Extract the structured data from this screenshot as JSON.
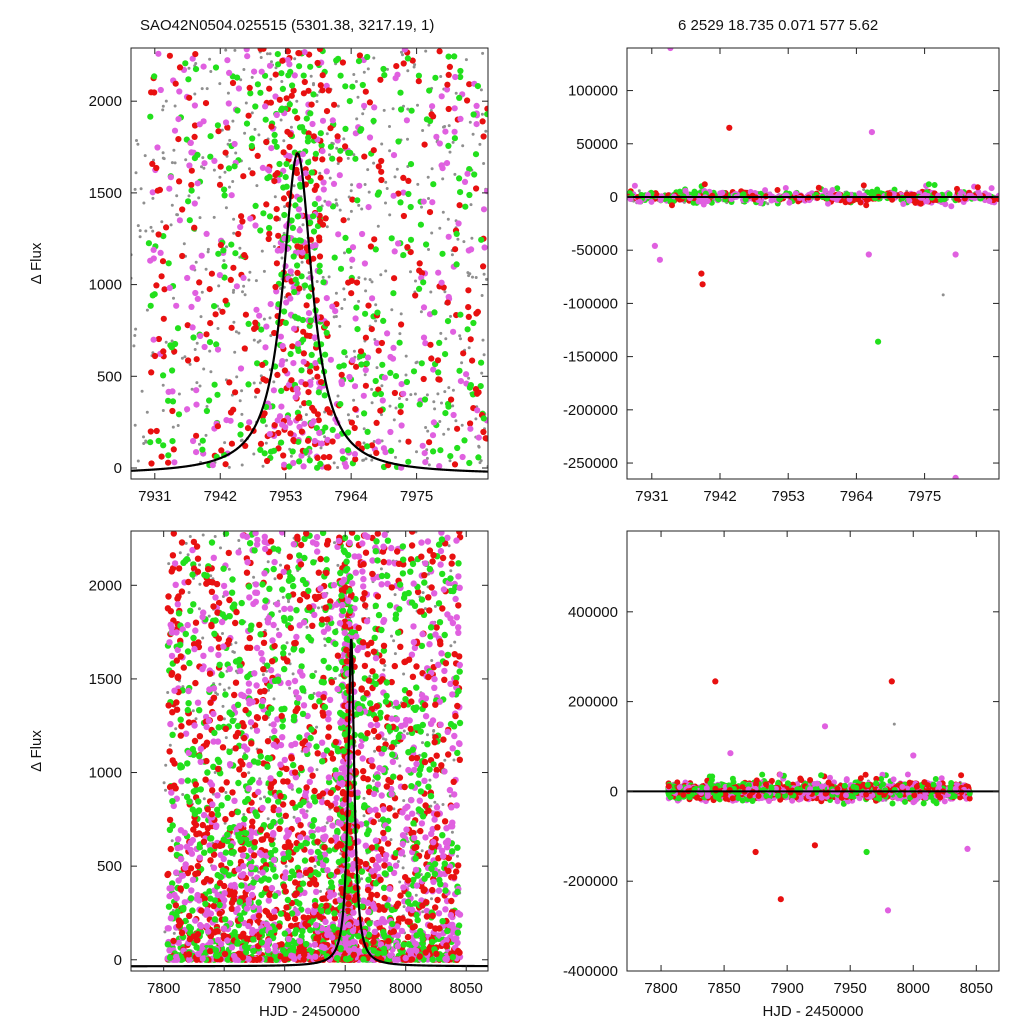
{
  "header": {
    "left": "SAO42N0504.025515 (5301.38, 3217.19,     1)",
    "right": "6    2529    18.735    0.071    577    5.62"
  },
  "chart_data": [
    {
      "type": "scatter",
      "panel": "top-left",
      "xlabel": "",
      "ylabel": "Δ Flux",
      "xlim": [
        7927,
        7987
      ],
      "ylim": [
        -60,
        2290
      ],
      "xticks": [
        7931,
        7942,
        7953,
        7964,
        7975
      ],
      "yticks": [
        0,
        500,
        1000,
        1500,
        2000
      ],
      "model": {
        "shape": "lorentzian",
        "center": 7955,
        "amplitude": 1750,
        "hwhm": 3,
        "color": "#000000"
      },
      "series": [
        {
          "color": "#8f8f8f",
          "kind": "small",
          "description_values": "dense uniform scatter 0-2290"
        },
        {
          "color": "#e81010",
          "kind": "large"
        },
        {
          "color": "#22e01c",
          "kind": "large"
        },
        {
          "color": "#e060e0",
          "kind": "large"
        }
      ]
    },
    {
      "type": "scatter",
      "panel": "top-right",
      "xlabel": "",
      "ylabel": "",
      "xlim": [
        7927,
        7987
      ],
      "ylim": [
        -265000,
        140000
      ],
      "xticks": [
        7931,
        7942,
        7953,
        7964,
        7975
      ],
      "yticks": [
        100000,
        50000,
        0,
        -50000,
        -100000,
        -150000,
        -200000,
        -250000
      ],
      "outliers": [
        {
          "x": 7943.5,
          "y": 65000,
          "color": "#e81010"
        },
        {
          "x": 7966.5,
          "y": 61000,
          "color": "#e060e0"
        },
        {
          "x": 7939,
          "y": -72000,
          "color": "#e81010"
        },
        {
          "x": 7939.2,
          "y": -82000,
          "color": "#e81010"
        },
        {
          "x": 7931.5,
          "y": -46000,
          "color": "#e060e0"
        },
        {
          "x": 7932.3,
          "y": -59000,
          "color": "#e060e0"
        },
        {
          "x": 7966,
          "y": -54000,
          "color": "#e060e0"
        },
        {
          "x": 7980,
          "y": -54000,
          "color": "#e060e0"
        },
        {
          "x": 7967.5,
          "y": -136000,
          "color": "#22e01c"
        },
        {
          "x": 7978,
          "y": -92000,
          "color": "#8f8f8f"
        },
        {
          "x": 7980,
          "y": -264000,
          "color": "#e060e0"
        },
        {
          "x": 7934,
          "y": 140000,
          "color": "#e060e0"
        }
      ]
    },
    {
      "type": "scatter",
      "panel": "bottom-left",
      "xlabel": "HJD - 2450000",
      "ylabel": "Δ Flux",
      "xlim": [
        7773,
        8068
      ],
      "ylim": [
        -60,
        2290
      ],
      "xticks": [
        7800,
        7850,
        7900,
        7950,
        8000,
        8050
      ],
      "yticks": [
        0,
        500,
        1000,
        1500,
        2000
      ],
      "model": {
        "shape": "lorentzian",
        "center": 7955,
        "amplitude": 1750,
        "hwhm": 3,
        "color": "#000000"
      }
    },
    {
      "type": "scatter",
      "panel": "bottom-right",
      "xlabel": "HJD - 2450000",
      "ylabel": "",
      "xlim": [
        7773,
        8068
      ],
      "ylim": [
        -400000,
        580000
      ],
      "xticks": [
        7800,
        7850,
        7900,
        7950,
        8000,
        8050
      ],
      "yticks": [
        400000,
        200000,
        0,
        -200000,
        -400000
      ],
      "outliers": [
        {
          "x": 7843,
          "y": 245000,
          "color": "#e81010"
        },
        {
          "x": 7983,
          "y": 245000,
          "color": "#e81010"
        },
        {
          "x": 7895,
          "y": -240000,
          "color": "#e81010"
        },
        {
          "x": 7980,
          "y": -265000,
          "color": "#e060e0"
        },
        {
          "x": 7930,
          "y": 145000,
          "color": "#e060e0"
        },
        {
          "x": 7875,
          "y": -135000,
          "color": "#e81010"
        },
        {
          "x": 7922,
          "y": -120000,
          "color": "#e81010"
        },
        {
          "x": 7963,
          "y": -135000,
          "color": "#22e01c"
        },
        {
          "x": 8043,
          "y": -128000,
          "color": "#e060e0"
        },
        {
          "x": 7985,
          "y": 150000,
          "color": "#8f8f8f"
        },
        {
          "x": 7855,
          "y": 85000,
          "color": "#e060e0"
        },
        {
          "x": 8000,
          "y": 80000,
          "color": "#e060e0"
        }
      ]
    }
  ]
}
